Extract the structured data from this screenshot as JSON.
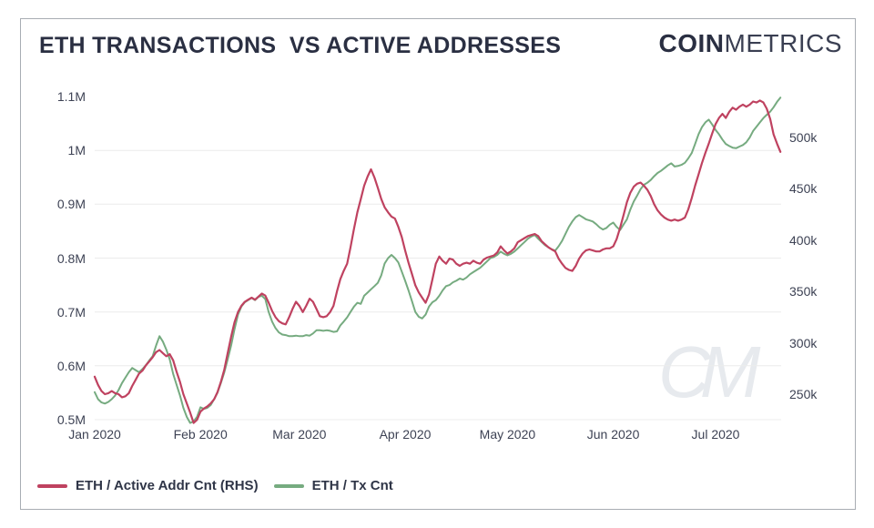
{
  "header": {
    "title": "ETH TRANSACTIONS  VS ACTIVE ADDRESSES",
    "logo_bold": "COIN",
    "logo_light": "METRICS"
  },
  "watermark": "CM",
  "colors": {
    "red": "#bf4260",
    "green": "#76ab80",
    "grid": "#ececec",
    "axis_text": "#3d4254",
    "border": "#a8adb3"
  },
  "legend": [
    {
      "label": "ETH / Active Addr Cnt (RHS)",
      "color": "#bf4260"
    },
    {
      "label": "ETH / Tx Cnt",
      "color": "#76ab80"
    }
  ],
  "axes": {
    "left": {
      "labels": [
        "1.1M",
        "1M",
        "0.9M",
        "0.8M",
        "0.7M",
        "0.6M",
        "0.5M"
      ],
      "values": [
        1.1,
        1.0,
        0.9,
        0.8,
        0.7,
        0.6,
        0.5
      ]
    },
    "right": {
      "labels": [
        "500k",
        "450k",
        "400k",
        "350k",
        "300k",
        "250k"
      ],
      "values": [
        500,
        450,
        400,
        350,
        300,
        250
      ]
    },
    "x": {
      "labels": [
        "Jan 2020",
        "Feb 2020",
        "Mar 2020",
        "Apr 2020",
        "May 2020",
        "Jun 2020",
        "Jul 2020"
      ],
      "day_offsets": [
        0,
        31,
        60,
        91,
        121,
        152,
        182
      ]
    }
  },
  "chart_data": {
    "type": "line",
    "title": "ETH TRANSACTIONS VS ACTIVE ADDRESSES",
    "x_unit": "days since 2020-01-01",
    "x_range_days": [
      0,
      201
    ],
    "grid": "horizontal-only",
    "legend_position": "bottom-left",
    "left_axis": {
      "series": "ETH / Tx Cnt",
      "unit": "millions",
      "range": [
        0.5,
        1.1
      ]
    },
    "right_axis": {
      "series": "ETH / Active Addr Cnt",
      "unit": "thousands",
      "range": [
        250,
        500
      ]
    },
    "series": [
      {
        "name": "ETH / Active Addr Cnt (RHS)",
        "axis": "right",
        "unit": "thousands",
        "color": "#bf4260",
        "values": [
          267,
          259,
          253,
          250,
          251,
          253,
          251,
          250,
          247,
          248,
          251,
          258,
          264,
          270,
          273,
          278,
          282,
          286,
          291,
          293,
          290,
          287,
          289,
          283,
          272,
          262,
          250,
          241,
          232,
          222,
          225,
          233,
          236,
          238,
          241,
          245,
          252,
          262,
          274,
          290,
          306,
          320,
          330,
          336,
          340,
          342,
          344,
          342,
          345,
          348,
          346,
          339,
          331,
          325,
          321,
          319,
          318,
          325,
          333,
          340,
          336,
          330,
          336,
          343,
          340,
          333,
          326,
          325,
          326,
          330,
          336,
          350,
          362,
          370,
          377,
          393,
          411,
          427,
          440,
          453,
          462,
          469,
          461,
          451,
          440,
          432,
          427,
          423,
          421,
          413,
          403,
          390,
          378,
          367,
          356,
          349,
          344,
          339,
          347,
          362,
          377,
          384,
          380,
          377,
          382,
          381,
          377,
          375,
          377,
          378,
          377,
          380,
          378,
          377,
          381,
          383,
          384,
          385,
          388,
          394,
          390,
          387,
          389,
          392,
          398,
          400,
          402,
          404,
          405,
          406,
          404,
          399,
          396,
          393,
          391,
          389,
          382,
          377,
          373,
          371,
          370,
          375,
          382,
          387,
          390,
          391,
          390,
          389,
          389,
          391,
          392,
          392,
          394,
          401,
          412,
          424,
          437,
          446,
          452,
          455,
          456,
          453,
          449,
          443,
          435,
          429,
          425,
          422,
          420,
          419,
          420,
          419,
          420,
          422,
          430,
          441,
          453,
          464,
          475,
          485,
          494,
          504,
          513,
          519,
          523,
          519,
          525,
          529,
          527,
          530,
          532,
          530,
          532,
          535,
          534,
          536,
          534,
          528,
          518,
          503,
          494,
          486
        ]
      },
      {
        "name": "ETH / Tx Cnt",
        "axis": "left",
        "unit": "millions",
        "color": "#76ab80",
        "values": [
          0.551,
          0.538,
          0.532,
          0.53,
          0.533,
          0.538,
          0.545,
          0.555,
          0.568,
          0.578,
          0.588,
          0.596,
          0.592,
          0.588,
          0.594,
          0.601,
          0.61,
          0.618,
          0.638,
          0.655,
          0.645,
          0.63,
          0.612,
          0.585,
          0.565,
          0.545,
          0.522,
          0.505,
          0.494,
          0.497,
          0.505,
          0.523,
          0.52,
          0.522,
          0.527,
          0.538,
          0.55,
          0.568,
          0.588,
          0.612,
          0.638,
          0.668,
          0.695,
          0.71,
          0.718,
          0.722,
          0.726,
          0.722,
          0.728,
          0.73,
          0.724,
          0.7,
          0.682,
          0.67,
          0.662,
          0.658,
          0.657,
          0.655,
          0.655,
          0.656,
          0.655,
          0.655,
          0.657,
          0.656,
          0.66,
          0.666,
          0.666,
          0.665,
          0.666,
          0.665,
          0.663,
          0.664,
          0.675,
          0.682,
          0.69,
          0.7,
          0.71,
          0.717,
          0.715,
          0.73,
          0.736,
          0.742,
          0.748,
          0.754,
          0.768,
          0.79,
          0.8,
          0.806,
          0.8,
          0.792,
          0.775,
          0.758,
          0.74,
          0.72,
          0.7,
          0.691,
          0.688,
          0.695,
          0.71,
          0.718,
          0.722,
          0.73,
          0.74,
          0.748,
          0.75,
          0.755,
          0.758,
          0.762,
          0.76,
          0.764,
          0.77,
          0.774,
          0.778,
          0.782,
          0.788,
          0.794,
          0.8,
          0.802,
          0.806,
          0.812,
          0.808,
          0.805,
          0.808,
          0.812,
          0.818,
          0.824,
          0.83,
          0.836,
          0.84,
          0.843,
          0.836,
          0.83,
          0.824,
          0.82,
          0.816,
          0.814,
          0.822,
          0.832,
          0.845,
          0.858,
          0.868,
          0.876,
          0.88,
          0.876,
          0.872,
          0.87,
          0.868,
          0.863,
          0.857,
          0.853,
          0.856,
          0.862,
          0.866,
          0.858,
          0.852,
          0.862,
          0.872,
          0.89,
          0.905,
          0.916,
          0.928,
          0.936,
          0.94,
          0.945,
          0.952,
          0.958,
          0.962,
          0.967,
          0.972,
          0.976,
          0.97,
          0.971,
          0.973,
          0.977,
          0.985,
          0.995,
          1.012,
          1.03,
          1.043,
          1.052,
          1.057,
          1.048,
          1.038,
          1.03,
          1.02,
          1.012,
          1.008,
          1.005,
          1.004,
          1.007,
          1.01,
          1.015,
          1.024,
          1.036,
          1.044,
          1.052,
          1.06,
          1.066,
          1.072,
          1.08,
          1.09,
          1.098
        ]
      }
    ]
  }
}
